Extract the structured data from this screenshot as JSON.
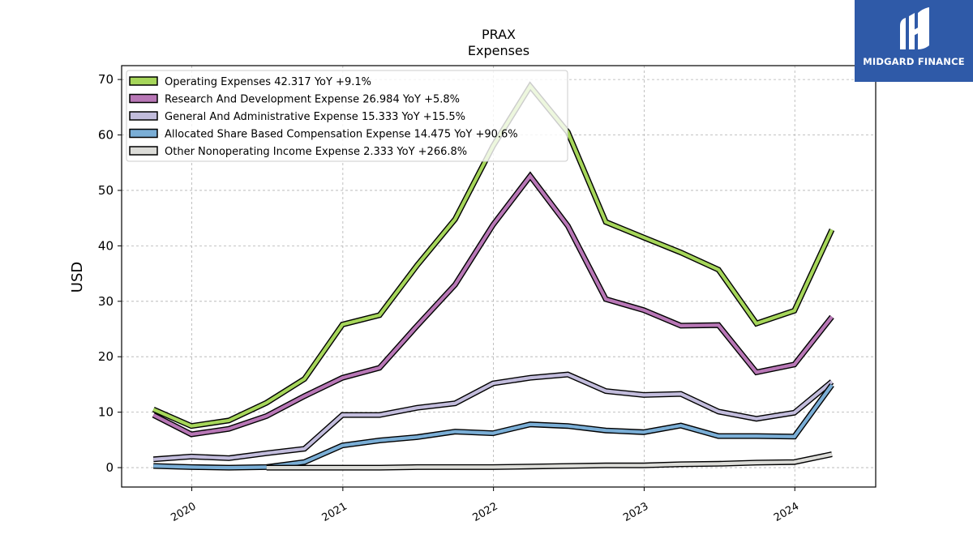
{
  "brand": {
    "name": "MIDGARD FINANCE",
    "background": "#2f5aa8",
    "icon": "midgard-logo-icon"
  },
  "chart_data": {
    "type": "line",
    "title": "PRAX",
    "subtitle": "Expenses",
    "xlabel": "",
    "ylabel": "USD",
    "ylim": [
      -3.5,
      72.5
    ],
    "xlim": [
      "2019-07-15",
      "2024-07-15"
    ],
    "yticks": [
      0,
      10,
      20,
      30,
      40,
      50,
      60,
      70
    ],
    "xticks": [
      "2020",
      "2021",
      "2022",
      "2023",
      "2024"
    ],
    "grid": true,
    "legend_position": "top-left",
    "series": [
      {
        "name": "Operating Expenses",
        "legend_label": "Operating Expenses  42.317 YoY +9.1%",
        "color": "#a6d65a",
        "points": [
          [
            "2019-09-30",
            10.5
          ],
          [
            "2019-12-31",
            7.5
          ],
          [
            "2020-03-31",
            8.5
          ],
          [
            "2020-06-30",
            11.7
          ],
          [
            "2020-09-30",
            16.0
          ],
          [
            "2020-12-31",
            25.8
          ],
          [
            "2021-03-31",
            27.5
          ],
          [
            "2021-06-30",
            36.5
          ],
          [
            "2021-09-30",
            44.8
          ],
          [
            "2021-12-31",
            58.0
          ],
          [
            "2022-03-31",
            68.8
          ],
          [
            "2022-06-30",
            60.5
          ],
          [
            "2022-09-30",
            44.3
          ],
          [
            "2022-12-31",
            41.5
          ],
          [
            "2023-03-31",
            38.8
          ],
          [
            "2023-06-30",
            35.7
          ],
          [
            "2023-09-30",
            26.0
          ],
          [
            "2023-12-31",
            28.3
          ],
          [
            "2024-03-31",
            42.9
          ]
        ]
      },
      {
        "name": "Research And Development Expense",
        "legend_label": "Research And Development Expense  26.984 YoY +5.8%",
        "color": "#b877b6",
        "points": [
          [
            "2019-09-30",
            9.5
          ],
          [
            "2019-12-31",
            6.0
          ],
          [
            "2020-03-31",
            7.0
          ],
          [
            "2020-06-30",
            9.3
          ],
          [
            "2020-09-30",
            12.9
          ],
          [
            "2020-12-31",
            16.2
          ],
          [
            "2021-03-31",
            18.0
          ],
          [
            "2021-06-30",
            25.6
          ],
          [
            "2021-09-30",
            33.0
          ],
          [
            "2021-12-31",
            43.8
          ],
          [
            "2022-03-31",
            52.6
          ],
          [
            "2022-06-30",
            43.6
          ],
          [
            "2022-09-30",
            30.4
          ],
          [
            "2022-12-31",
            28.4
          ],
          [
            "2023-03-31",
            25.6
          ],
          [
            "2023-06-30",
            25.7
          ],
          [
            "2023-09-30",
            17.2
          ],
          [
            "2023-12-31",
            18.6
          ],
          [
            "2024-03-31",
            27.2
          ]
        ]
      },
      {
        "name": "General And Administrative Expense",
        "legend_label": "General And Administrative Expense  15.333 YoY +15.5%",
        "color": "#c2bcdc",
        "points": [
          [
            "2019-09-30",
            1.5
          ],
          [
            "2019-12-31",
            2.0
          ],
          [
            "2020-03-31",
            1.7
          ],
          [
            "2020-06-30",
            2.6
          ],
          [
            "2020-09-30",
            3.4
          ],
          [
            "2020-12-31",
            9.5
          ],
          [
            "2021-03-31",
            9.5
          ],
          [
            "2021-06-30",
            10.8
          ],
          [
            "2021-09-30",
            11.6
          ],
          [
            "2021-12-31",
            15.2
          ],
          [
            "2022-03-31",
            16.2
          ],
          [
            "2022-06-30",
            16.8
          ],
          [
            "2022-09-30",
            13.8
          ],
          [
            "2022-12-31",
            13.1
          ],
          [
            "2023-03-31",
            13.3
          ],
          [
            "2023-06-30",
            10.1
          ],
          [
            "2023-09-30",
            8.8
          ],
          [
            "2023-12-31",
            9.9
          ],
          [
            "2024-03-31",
            15.5
          ]
        ]
      },
      {
        "name": "Allocated Share Based Compensation Expense",
        "legend_label": "Allocated Share Based Compensation Expense  14.475 YoY +90.6%",
        "color": "#7aaed6",
        "points": [
          [
            "2019-09-30",
            0.3
          ],
          [
            "2019-12-31",
            0.1
          ],
          [
            "2020-03-31",
            0.0
          ],
          [
            "2020-06-30",
            0.1
          ],
          [
            "2020-09-30",
            1.0
          ],
          [
            "2020-12-31",
            4.0
          ],
          [
            "2021-03-31",
            4.9
          ],
          [
            "2021-06-30",
            5.5
          ],
          [
            "2021-09-30",
            6.5
          ],
          [
            "2021-12-31",
            6.2
          ],
          [
            "2022-03-31",
            7.8
          ],
          [
            "2022-06-30",
            7.5
          ],
          [
            "2022-09-30",
            6.7
          ],
          [
            "2022-12-31",
            6.4
          ],
          [
            "2023-03-31",
            7.6
          ],
          [
            "2023-06-30",
            5.7
          ],
          [
            "2023-09-30",
            5.7
          ],
          [
            "2023-12-31",
            5.6
          ],
          [
            "2024-03-31",
            14.9
          ]
        ]
      },
      {
        "name": "Other Nonoperating Income Expense",
        "legend_label": "Other Nonoperating Income Expense  2.333 YoY +266.8%",
        "color": "#dcdcd8",
        "points": [
          [
            "2020-06-30",
            0.0
          ],
          [
            "2020-09-30",
            0.0
          ],
          [
            "2020-12-31",
            0.0
          ],
          [
            "2021-03-31",
            0.0
          ],
          [
            "2021-06-30",
            0.1
          ],
          [
            "2021-09-30",
            0.1
          ],
          [
            "2021-12-31",
            0.1
          ],
          [
            "2022-03-31",
            0.2
          ],
          [
            "2022-06-30",
            0.3
          ],
          [
            "2022-09-30",
            0.4
          ],
          [
            "2022-12-31",
            0.4
          ],
          [
            "2023-03-31",
            0.6
          ],
          [
            "2023-06-30",
            0.7
          ],
          [
            "2023-09-30",
            0.9
          ],
          [
            "2023-12-31",
            1.0
          ],
          [
            "2024-03-31",
            2.4
          ]
        ]
      }
    ]
  }
}
